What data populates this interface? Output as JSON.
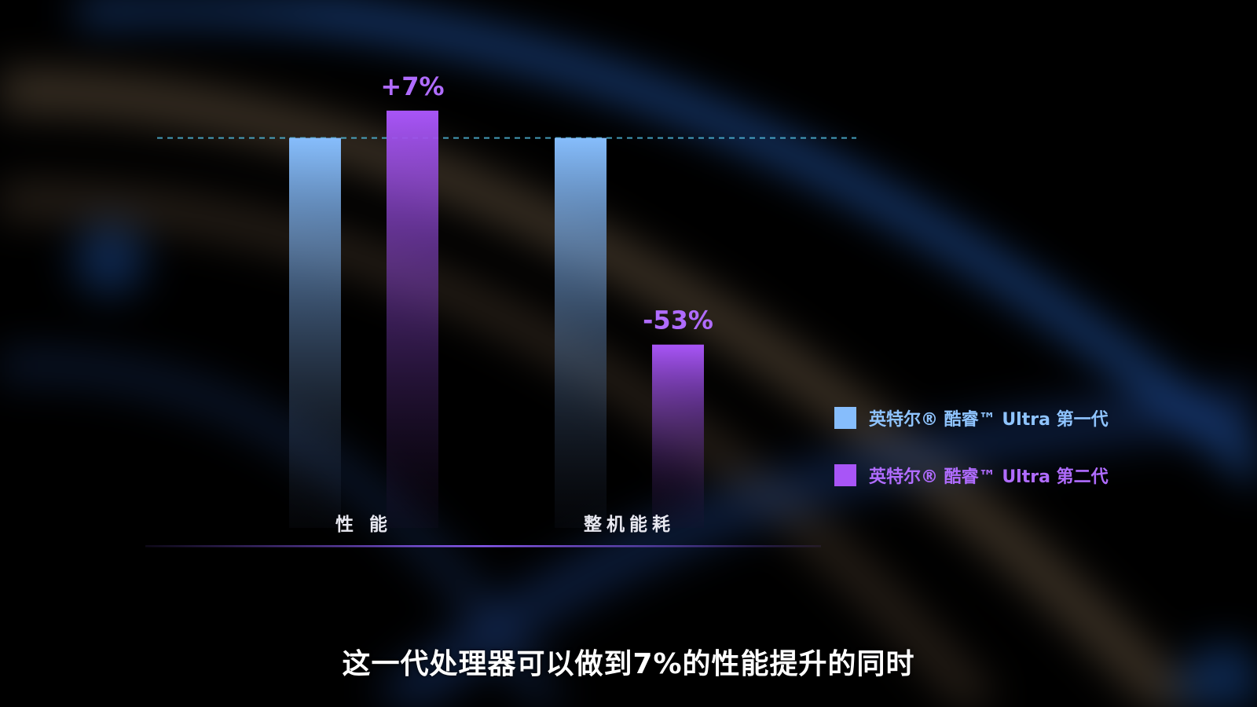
{
  "colors": {
    "series1_top": "#86bdfc",
    "series1_bottom": "#1b2233",
    "series2_top": "#a855f7",
    "series2_bottom": "#1e1030",
    "label_series1": "#8fc4ff",
    "label_series2": "#b06cff",
    "reference_line": "#4fb6d8",
    "baseline": "#8b5cf6"
  },
  "chart_data": {
    "type": "bar",
    "categories": [
      "性 能",
      "整机能耗"
    ],
    "series": [
      {
        "name": "英特尔® 酷睿™ Ultra 第一代",
        "values": [
          100,
          100
        ]
      },
      {
        "name": "英特尔® 酷睿™ Ultra 第二代",
        "values": [
          107,
          47
        ]
      }
    ],
    "data_labels": [
      {
        "series": 1,
        "category": 0,
        "text": "+7%"
      },
      {
        "series": 1,
        "category": 1,
        "text": "-53%"
      }
    ],
    "reference_line": {
      "value": 100,
      "style": "dashed"
    },
    "ylim": [
      0,
      112
    ],
    "grid": false,
    "legend_position": "right"
  },
  "legend": {
    "items": [
      {
        "label": "英特尔® 酷睿™ Ultra 第一代"
      },
      {
        "label": "英特尔® 酷睿™ Ultra 第二代"
      }
    ]
  },
  "subtitle": {
    "text": "这一代处理器可以做到7%的性能提升的同时"
  }
}
